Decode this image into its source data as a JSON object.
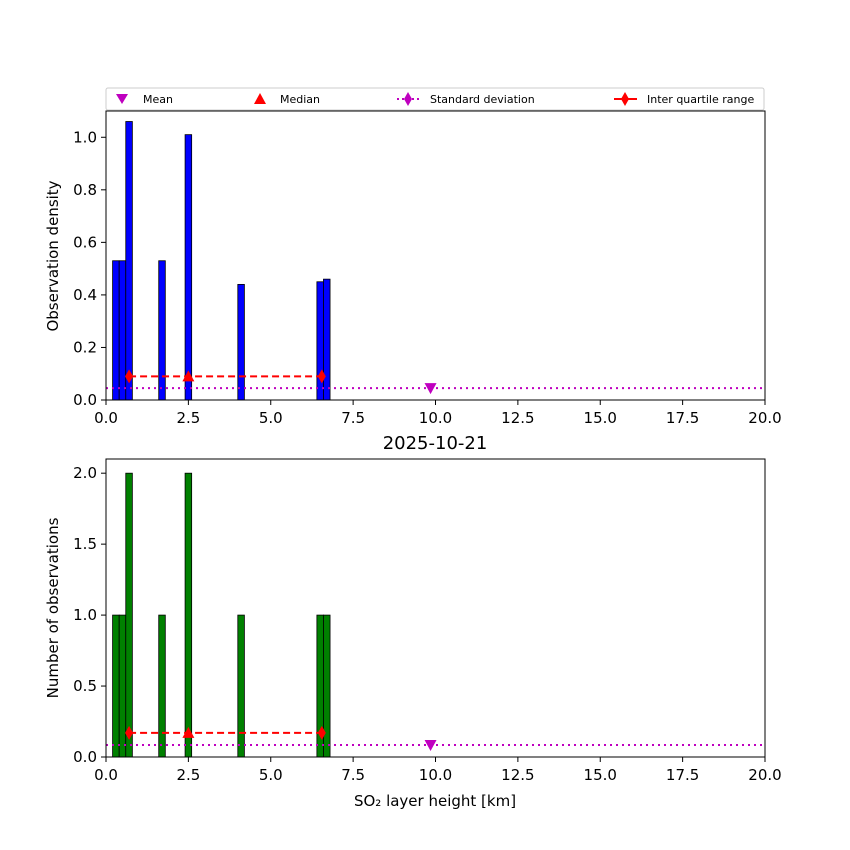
{
  "chart_data": [
    {
      "type": "bar",
      "title": "",
      "xlabel": "",
      "ylabel": "Observation density",
      "xlim": [
        0,
        20
      ],
      "ylim": [
        0,
        1.1
      ],
      "xticks": [
        "0.0",
        "2.5",
        "5.0",
        "7.5",
        "10.0",
        "12.5",
        "15.0",
        "17.5",
        "20.0"
      ],
      "yticks": [
        "0.0",
        "0.2",
        "0.4",
        "0.6",
        "0.8",
        "1.0"
      ],
      "bar_color": "#0000ff",
      "bin_width": 0.2,
      "bars": [
        {
          "x": 0.3,
          "value": 0.53
        },
        {
          "x": 0.5,
          "value": 0.53
        },
        {
          "x": 0.7,
          "value": 1.06
        },
        {
          "x": 1.7,
          "value": 0.53
        },
        {
          "x": 2.5,
          "value": 1.01
        },
        {
          "x": 4.1,
          "value": 0.44
        },
        {
          "x": 6.5,
          "value": 0.45
        },
        {
          "x": 6.7,
          "value": 0.46
        }
      ],
      "stats": {
        "mean": {
          "x": 9.85,
          "y": 0.045
        },
        "median": {
          "x": 2.5,
          "y": 0.09
        },
        "std_line_y": 0.045,
        "iqr": {
          "x_start": 0.7,
          "x_end": 6.55,
          "y": 0.09
        }
      },
      "grid": false,
      "legend_position": "top"
    },
    {
      "type": "bar",
      "title": "2025-10-21",
      "xlabel": "SO₂ layer height [km]",
      "ylabel": "Number of observations",
      "xlim": [
        0,
        20
      ],
      "ylim": [
        0,
        2.1
      ],
      "xticks": [
        "0.0",
        "2.5",
        "5.0",
        "7.5",
        "10.0",
        "12.5",
        "15.0",
        "17.5",
        "20.0"
      ],
      "yticks": [
        "0.0",
        "0.5",
        "1.0",
        "1.5",
        "2.0"
      ],
      "bar_color": "#008000",
      "bin_width": 0.2,
      "bars": [
        {
          "x": 0.3,
          "value": 1
        },
        {
          "x": 0.5,
          "value": 1
        },
        {
          "x": 0.7,
          "value": 2
        },
        {
          "x": 1.7,
          "value": 1
        },
        {
          "x": 2.5,
          "value": 2
        },
        {
          "x": 4.1,
          "value": 1
        },
        {
          "x": 6.5,
          "value": 1
        },
        {
          "x": 6.7,
          "value": 1
        }
      ],
      "stats": {
        "mean": {
          "x": 9.85,
          "y": 0.085
        },
        "median": {
          "x": 2.5,
          "y": 0.17
        },
        "std_line_y": 0.085,
        "iqr": {
          "x_start": 0.7,
          "x_end": 6.55,
          "y": 0.17
        }
      },
      "grid": false
    }
  ],
  "legend": {
    "mean_label": "Mean",
    "median_label": "Median",
    "std_label": "Standard deviation",
    "iqr_label": "Inter quartile range",
    "mean_color": "#bf00bf",
    "median_color": "#ff0000",
    "std_color": "#bf00bf",
    "iqr_color": "#ff0000"
  }
}
